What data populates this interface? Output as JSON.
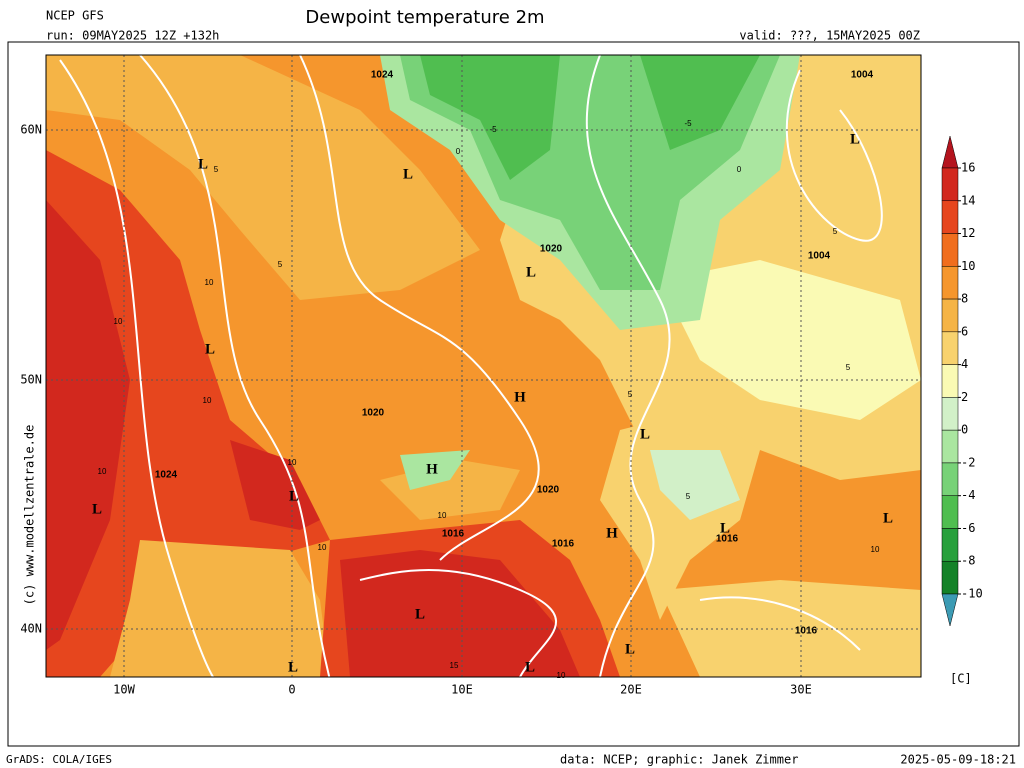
{
  "header": {
    "model": "NCEP GFS",
    "title": "Dewpoint temperature 2m",
    "run": "run: 09MAY2025 12Z +132h",
    "valid": "valid: ???, 15MAY2025 00Z"
  },
  "map": {
    "lat_labels": [
      "60N",
      "50N",
      "40N"
    ],
    "lon_labels": [
      "10W",
      "0",
      "10E",
      "20E",
      "30E"
    ],
    "pressure_labels": [
      "1024",
      "1004",
      "L",
      "L",
      "L",
      "1020",
      "L",
      "1004",
      "L",
      "H",
      "1020",
      "L",
      "H",
      "1024",
      "L",
      "L",
      "1020",
      "1016",
      "1016",
      "H",
      "L",
      "1016",
      "L",
      "L",
      "1016",
      "L",
      "L",
      "L"
    ],
    "dewpoint_labels": [
      "10",
      "10",
      "10",
      "10",
      "10",
      "10",
      "10",
      "10",
      "5",
      "5",
      "0",
      "-5",
      "-5",
      "0",
      "5",
      "5",
      "5",
      "5",
      "15",
      "10"
    ],
    "watermark": "(c) www.modellzentrale.de"
  },
  "colorbar": {
    "ticks": [
      16,
      14,
      12,
      10,
      8,
      6,
      4,
      2,
      0,
      -2,
      -4,
      -6,
      -8,
      -10
    ],
    "colors": [
      "#b4141e",
      "#d2281e",
      "#e6461e",
      "#f06e1e",
      "#f5962d",
      "#f5b446",
      "#f8d26e",
      "#fafab4",
      "#d2f0c8",
      "#aae6a0",
      "#78d278",
      "#50be50",
      "#28a03c",
      "#148228",
      "#3c9bb4"
    ],
    "unit": "[C]"
  },
  "footer": {
    "grads": "GrADS: COLA/IGES",
    "credit": "data: NCEP; graphic: Janek Zimmer",
    "timestamp": "2025-05-09-18:21"
  }
}
